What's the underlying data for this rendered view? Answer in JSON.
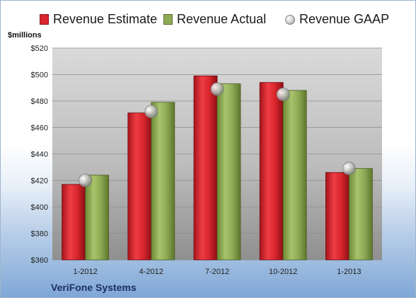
{
  "legend": [
    {
      "label": "Revenue Estimate",
      "color": "#d9262e",
      "kind": "bar"
    },
    {
      "label": "Revenue Actual",
      "color": "#8faa55",
      "kind": "bar"
    },
    {
      "label": "Revenue GAAP",
      "color": "#c8c8c8",
      "kind": "bubble"
    }
  ],
  "unit_label": "$millions",
  "company": "VeriFone Systems",
  "colors": {
    "estimate": "#d9262e",
    "actual": "#8faa55",
    "gaap": "#c8c8c8",
    "plot_bg_top": "#d4d4d4",
    "plot_bg_bottom": "#9a9a9a"
  },
  "chart_data": {
    "type": "bar",
    "categories": [
      "1-2012",
      "4-2012",
      "7-2012",
      "10-2012",
      "1-2013"
    ],
    "series": [
      {
        "name": "Revenue Estimate",
        "values": [
          417,
          471,
          499,
          494,
          426
        ]
      },
      {
        "name": "Revenue Actual",
        "values": [
          424,
          479,
          493,
          488,
          429
        ]
      },
      {
        "name": "Revenue GAAP",
        "values": [
          420,
          472,
          489,
          485,
          429
        ]
      }
    ],
    "yticks": [
      "$360",
      "$380",
      "$400",
      "$420",
      "$440",
      "$460",
      "$480",
      "$500",
      "$520"
    ],
    "ylim": [
      360,
      520
    ],
    "ylabel": "$millions",
    "grid": true,
    "legend_position": "top"
  }
}
